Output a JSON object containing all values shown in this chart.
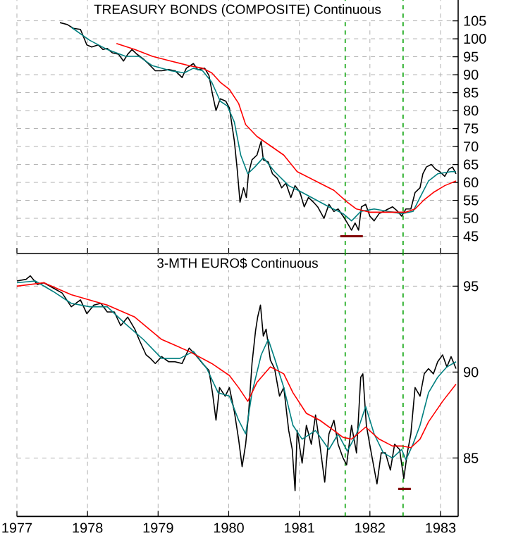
{
  "chart_data": [
    {
      "type": "line",
      "title": "TREASURY BONDS (COMPOSITE) Continuous",
      "xlim": [
        1977,
        1983.25
      ],
      "xticks": [
        1977,
        1978,
        1979,
        1980,
        1981,
        1982,
        1983
      ],
      "ylim": [
        40.2,
        110.8
      ],
      "yticks": [
        45,
        50,
        55,
        60,
        65,
        70,
        75,
        80,
        85,
        90,
        95,
        100,
        105
      ],
      "grid": true,
      "tick_labels": "y",
      "ref_lines": [
        {
          "axis": "x",
          "value": 1981.65,
          "color": "#00a000",
          "line_style": "dashed"
        },
        {
          "axis": "x",
          "value": 1982.47,
          "color": "#00a000",
          "line_style": "dashed"
        }
      ],
      "series": [
        {
          "color": "#000000",
          "x": [
            1977.61,
            1977.71,
            1977.8,
            1977.9,
            1977.99,
            1978.06,
            1978.15,
            1978.22,
            1978.28,
            1978.35,
            1978.44,
            1978.51,
            1978.57,
            1978.63,
            1978.7,
            1978.79,
            1978.86,
            1978.96,
            1979.05,
            1979.15,
            1979.24,
            1979.34,
            1979.4,
            1979.5,
            1979.56,
            1979.66,
            1979.72,
            1979.77,
            1979.82,
            1979.88,
            1979.96,
            1980.01,
            1980.08,
            1980.12,
            1980.16,
            1980.21,
            1980.25,
            1980.28,
            1980.33,
            1980.4,
            1980.46,
            1980.49,
            1980.56,
            1980.62,
            1980.69,
            1980.75,
            1980.81,
            1980.88,
            1980.94,
            1981.01,
            1981.07,
            1981.13,
            1981.2,
            1981.26,
            1981.35,
            1981.42,
            1981.49,
            1981.55,
            1981.62,
            1981.68,
            1981.74,
            1981.79,
            1981.84,
            1981.88,
            1981.94,
            1982.0,
            1982.06,
            1982.13,
            1982.19,
            1982.26,
            1982.32,
            1982.38,
            1982.45,
            1982.51,
            1982.58,
            1982.64,
            1982.71,
            1982.75,
            1982.8,
            1982.87,
            1982.93,
            1982.99,
            1983.06,
            1983.12,
            1983.17,
            1983.22
          ],
          "values": [
            104.5,
            104.0,
            102.9,
            102.6,
            98.3,
            97.7,
            98.3,
            97.0,
            97.3,
            96.1,
            95.7,
            93.8,
            95.7,
            97.0,
            95.7,
            94.4,
            93.1,
            91.1,
            91.1,
            91.4,
            91.1,
            89.2,
            91.8,
            93.1,
            91.4,
            91.8,
            89.8,
            84.6,
            80.0,
            83.3,
            82.6,
            80.7,
            71.5,
            63.7,
            54.5,
            58.5,
            55.8,
            62.4,
            66.3,
            67.6,
            71.5,
            66.3,
            65.7,
            62.4,
            61.1,
            58.5,
            59.8,
            55.8,
            59.1,
            57.2,
            53.2,
            55.8,
            54.5,
            53.2,
            50.0,
            53.9,
            51.9,
            52.6,
            50.6,
            48.7,
            46.7,
            48.7,
            46.7,
            53.2,
            53.9,
            50.6,
            49.3,
            51.3,
            51.9,
            52.6,
            53.2,
            52.2,
            50.6,
            52.6,
            52.6,
            57.2,
            58.5,
            62.4,
            64.3,
            65.0,
            63.7,
            63.0,
            61.7,
            63.7,
            64.3,
            62.4
          ]
        },
        {
          "color": "#008080",
          "x": [
            1977.77,
            1978.03,
            1978.28,
            1978.54,
            1978.73,
            1978.92,
            1979.18,
            1979.37,
            1979.5,
            1979.63,
            1979.76,
            1979.88,
            1979.98,
            1980.08,
            1980.17,
            1980.27,
            1980.37,
            1980.49,
            1980.65,
            1980.85,
            1981.04,
            1981.23,
            1981.42,
            1981.62,
            1981.74,
            1981.87,
            1982.06,
            1982.26,
            1982.45,
            1982.61,
            1982.71,
            1982.83,
            1982.96,
            1983.15,
            1983.22
          ],
          "values": [
            103.2,
            99.6,
            97.0,
            95.1,
            95.1,
            92.5,
            91.1,
            90.5,
            91.8,
            91.1,
            87.9,
            82.6,
            81.3,
            76.8,
            67.6,
            62.4,
            64.3,
            66.9,
            63.0,
            59.1,
            57.2,
            55.2,
            53.2,
            51.3,
            49.3,
            51.9,
            52.6,
            51.9,
            51.3,
            51.9,
            55.8,
            60.4,
            62.4,
            63.0,
            63.0
          ]
        },
        {
          "color": "#ff0000",
          "x": [
            1978.41,
            1978.67,
            1978.92,
            1979.18,
            1979.44,
            1979.63,
            1979.76,
            1979.88,
            1980.01,
            1980.14,
            1980.24,
            1980.4,
            1980.59,
            1980.78,
            1980.97,
            1981.23,
            1981.49,
            1981.68,
            1981.81,
            1982.0,
            1982.26,
            1982.51,
            1982.64,
            1982.77,
            1982.9,
            1983.06,
            1983.22
          ],
          "values": [
            98.7,
            97.0,
            95.1,
            93.8,
            92.5,
            91.8,
            90.5,
            87.9,
            85.9,
            82.0,
            76.1,
            72.8,
            70.2,
            67.6,
            63.0,
            60.4,
            57.8,
            54.5,
            52.6,
            51.7,
            51.7,
            51.7,
            52.6,
            55.2,
            57.2,
            59.1,
            60.4
          ]
        },
        {
          "color": "#800000",
          "x": [
            1981.58,
            1981.9
          ],
          "values": [
            45.0,
            45.0
          ]
        }
      ]
    },
    {
      "type": "line",
      "title": "3-MTH EURO$ Continuous",
      "xlim": [
        1977,
        1983.25
      ],
      "xticks": [
        1977,
        1978,
        1979,
        1980,
        1981,
        1982,
        1983
      ],
      "ylim": [
        81.6,
        96.9
      ],
      "yticks": [
        85,
        90,
        95
      ],
      "grid": true,
      "ref_lines": [
        {
          "axis": "x",
          "value": 1981.65,
          "color": "#00a000",
          "line_style": "dashed"
        },
        {
          "axis": "x",
          "value": 1982.47,
          "color": "#00a000",
          "line_style": "dashed"
        }
      ],
      "series": [
        {
          "color": "#000000",
          "x": [
            1977.0,
            1977.13,
            1977.19,
            1977.29,
            1977.38,
            1977.51,
            1977.64,
            1977.77,
            1977.9,
            1977.99,
            1978.09,
            1978.19,
            1978.28,
            1978.38,
            1978.47,
            1978.57,
            1978.67,
            1978.73,
            1978.83,
            1978.89,
            1978.96,
            1979.05,
            1979.15,
            1979.24,
            1979.34,
            1979.44,
            1979.53,
            1979.63,
            1979.72,
            1979.77,
            1979.82,
            1979.87,
            1979.95,
            1980.01,
            1980.08,
            1980.14,
            1980.19,
            1980.24,
            1980.28,
            1980.33,
            1980.38,
            1980.41,
            1980.45,
            1980.49,
            1980.53,
            1980.59,
            1980.65,
            1980.72,
            1980.78,
            1980.85,
            1980.9,
            1980.94,
            1980.97,
            1981.04,
            1981.1,
            1981.17,
            1981.23,
            1981.29,
            1981.36,
            1981.42,
            1981.49,
            1981.55,
            1981.62,
            1981.67,
            1981.74,
            1981.81,
            1981.87,
            1981.9,
            1981.95,
            1982.01,
            1982.1,
            1982.16,
            1982.22,
            1982.29,
            1982.35,
            1982.42,
            1982.48,
            1982.53,
            1982.58,
            1982.64,
            1982.71,
            1982.77,
            1982.83,
            1982.9,
            1982.96,
            1983.03,
            1983.09,
            1983.15,
            1983.22
          ],
          "values": [
            95.3,
            95.4,
            95.6,
            95.1,
            95.2,
            94.9,
            94.6,
            93.8,
            94.2,
            93.4,
            93.9,
            94.0,
            93.5,
            93.5,
            92.7,
            93.2,
            92.5,
            91.9,
            91.0,
            90.8,
            90.5,
            90.9,
            90.6,
            90.6,
            90.5,
            91.4,
            91.0,
            90.5,
            90.1,
            88.8,
            87.2,
            89.1,
            88.6,
            89.1,
            87.7,
            86.1,
            84.5,
            85.8,
            87.5,
            90.5,
            92.4,
            93.2,
            93.9,
            92.1,
            92.5,
            90.7,
            90.2,
            88.6,
            89.1,
            86.6,
            85.5,
            83.1,
            86.6,
            84.7,
            86.9,
            85.8,
            87.5,
            85.8,
            83.6,
            86.4,
            87.2,
            85.8,
            85.0,
            84.6,
            86.9,
            85.3,
            89.7,
            89.9,
            86.9,
            85.5,
            83.5,
            85.3,
            85.3,
            84.3,
            85.8,
            85.5,
            83.8,
            85.3,
            86.4,
            89.1,
            88.6,
            89.9,
            90.2,
            89.9,
            90.6,
            91.0,
            90.3,
            90.9,
            90.2
          ]
        },
        {
          "color": "#008080",
          "x": [
            1977.0,
            1977.26,
            1977.51,
            1977.77,
            1978.03,
            1978.28,
            1978.54,
            1978.79,
            1979.05,
            1979.31,
            1979.5,
            1979.69,
            1979.85,
            1980.01,
            1980.14,
            1980.24,
            1980.33,
            1980.46,
            1980.56,
            1980.65,
            1980.78,
            1980.91,
            1981.04,
            1981.23,
            1981.42,
            1981.55,
            1981.68,
            1981.81,
            1981.94,
            1982.06,
            1982.19,
            1982.32,
            1982.45,
            1982.51,
            1982.61,
            1982.71,
            1982.83,
            1982.96,
            1983.09,
            1983.22
          ],
          "values": [
            95.2,
            95.3,
            94.7,
            94.0,
            93.8,
            93.8,
            92.8,
            91.9,
            90.8,
            90.8,
            91.2,
            90.2,
            88.8,
            88.6,
            87.2,
            86.4,
            88.8,
            91.0,
            91.9,
            90.8,
            89.1,
            86.9,
            86.1,
            86.6,
            85.5,
            86.4,
            85.4,
            86.4,
            88.0,
            86.4,
            85.3,
            85.0,
            85.5,
            84.9,
            85.8,
            86.9,
            88.8,
            89.7,
            90.3,
            90.6
          ]
        },
        {
          "color": "#ff0000",
          "x": [
            1977.0,
            1977.38,
            1977.77,
            1978.28,
            1978.67,
            1979.05,
            1979.44,
            1979.76,
            1980.01,
            1980.14,
            1980.27,
            1980.4,
            1980.59,
            1980.78,
            1980.91,
            1981.1,
            1981.29,
            1981.49,
            1981.62,
            1981.74,
            1981.94,
            1982.13,
            1982.32,
            1982.45,
            1982.58,
            1982.71,
            1982.83,
            1983.03,
            1983.22
          ],
          "values": [
            95.0,
            95.2,
            94.5,
            93.9,
            93.2,
            91.9,
            91.2,
            90.5,
            89.8,
            89.1,
            88.3,
            89.4,
            90.3,
            89.9,
            88.8,
            87.6,
            87.2,
            86.6,
            86.2,
            86.1,
            86.8,
            86.1,
            85.7,
            85.7,
            85.6,
            86.1,
            87.1,
            88.3,
            89.3
          ]
        },
        {
          "color": "#800000",
          "x": [
            1982.4,
            1982.58
          ],
          "values": [
            83.2,
            83.2
          ]
        }
      ]
    }
  ]
}
